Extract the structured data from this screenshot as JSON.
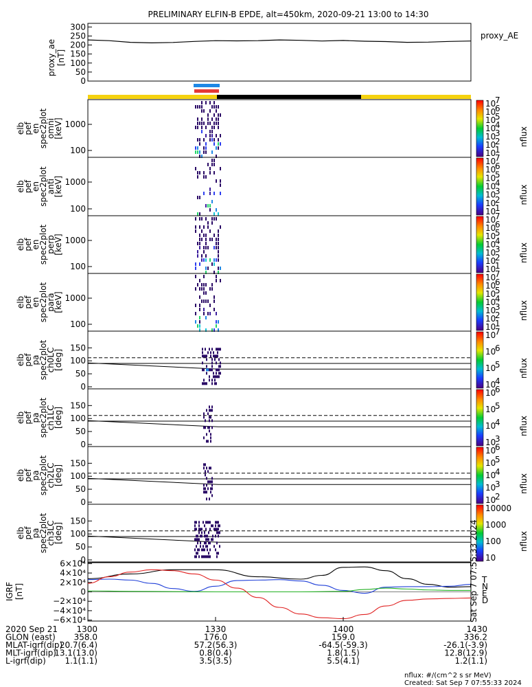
{
  "title": "PRELIMINARY ELFIN-B EPDE, alt=450km, 2020-09-21 13:00 to 14:30",
  "proxy_ae": {
    "ylabel": [
      "proxy_ae",
      "[nT]"
    ],
    "yticks": [
      "300",
      "250",
      "200",
      "150",
      "100",
      "50",
      "0"
    ],
    "legend": "proxy_AE"
  },
  "spectra_panels": [
    {
      "ylabel": [
        "elb",
        "pef",
        "en",
        "spec2plot",
        "omni",
        "[keV]"
      ],
      "yticks": [
        "1000",
        "100"
      ],
      "cbar_ticks": [
        "10",
        "10",
        "10",
        "10",
        "10",
        "10",
        "10"
      ],
      "cbar_exps": [
        "7",
        "6",
        "5",
        "4",
        "3",
        "2",
        "1"
      ],
      "cbar_unit": "nflux"
    },
    {
      "ylabel": [
        "elb",
        "pef",
        "en",
        "spec2plot",
        "anti",
        "[keV]"
      ],
      "yticks": [
        "1000",
        "100"
      ],
      "cbar_ticks": [
        "10",
        "10",
        "10",
        "10",
        "10",
        "10",
        "10"
      ],
      "cbar_exps": [
        "7",
        "6",
        "5",
        "4",
        "3",
        "2",
        "1"
      ],
      "cbar_unit": "nflux"
    },
    {
      "ylabel": [
        "elb",
        "pef",
        "en",
        "spec2plot",
        "perp",
        "[keV]"
      ],
      "yticks": [
        "1000",
        "100"
      ],
      "cbar_ticks": [
        "10",
        "10",
        "10",
        "10",
        "10",
        "10",
        "10"
      ],
      "cbar_exps": [
        "7",
        "6",
        "5",
        "4",
        "3",
        "2",
        "1"
      ],
      "cbar_unit": "nflux"
    },
    {
      "ylabel": [
        "elb",
        "pef",
        "en",
        "spec2plot",
        "para",
        "[keV]"
      ],
      "yticks": [
        "1000",
        "100"
      ],
      "cbar_ticks": [
        "10",
        "10",
        "10",
        "10",
        "10",
        "10",
        "10"
      ],
      "cbar_exps": [
        "7",
        "6",
        "5",
        "4",
        "3",
        "2",
        "1"
      ],
      "cbar_unit": "nflux"
    }
  ],
  "pa_panels": [
    {
      "ylabel": [
        "elb",
        "pef",
        "pa",
        "spec2plot",
        "ch0LC",
        "[deg]"
      ],
      "yticks": [
        "150",
        "100",
        "50",
        "0"
      ],
      "cbar_ticks": [
        "10",
        "10",
        "10",
        "10"
      ],
      "cbar_exps": [
        "7",
        "6",
        "5",
        "4"
      ],
      "cbar_unit": "nflux"
    },
    {
      "ylabel": [
        "elb",
        "pef",
        "pa",
        "spec2plot",
        "ch1LC",
        "[deg]"
      ],
      "yticks": [
        "150",
        "100",
        "50",
        "0"
      ],
      "cbar_ticks": [
        "10",
        "10",
        "10",
        "10"
      ],
      "cbar_exps": [
        "6",
        "5",
        "4",
        "3"
      ],
      "cbar_unit": "nflux"
    },
    {
      "ylabel": [
        "elb",
        "pef",
        "pa",
        "spec2plot",
        "ch2LC",
        "[deg]"
      ],
      "yticks": [
        "150",
        "100",
        "50",
        "0"
      ],
      "cbar_ticks": [
        "10",
        "10",
        "10",
        "10",
        "10"
      ],
      "cbar_exps": [
        "6",
        "5",
        "4",
        "3",
        "2"
      ],
      "cbar_unit": "nflux"
    },
    {
      "ylabel": [
        "elb",
        "pef",
        "pa",
        "spec2plot",
        "ch3LC",
        "[deg]"
      ],
      "yticks": [
        "150",
        "100",
        "50",
        "0"
      ],
      "cbar_ticks": [
        "10000",
        "1000",
        "100",
        "10"
      ],
      "cbar_exps": [
        "",
        "",
        "",
        ""
      ],
      "cbar_unit": "nflux"
    }
  ],
  "igrf": {
    "ylabel": [
      "IGRF",
      "[nT]"
    ],
    "yticks": [
      "6×10⁴",
      "4×10⁴",
      "2×10⁴",
      "0",
      "−2×10⁴",
      "−4×10⁴",
      "−6×10⁴"
    ],
    "legend": [
      {
        "label": "T",
        "color": "#000000"
      },
      {
        "label": "N",
        "color": "#1f3fd8"
      },
      {
        "label": "E",
        "color": "#22b022"
      },
      {
        "label": "D",
        "color": "#e02020"
      }
    ],
    "side_note": "Sat Sep  7 07:55:33 2024"
  },
  "time_axis": {
    "rows": [
      {
        "label": "2020 Sep 21",
        "values": [
          "1300",
          "1330",
          "1400",
          "1430"
        ]
      },
      {
        "label": "GLON (east)",
        "values": [
          "358.0",
          "176.0",
          "159.0",
          "336.2"
        ]
      },
      {
        "label": "MLAT-igrf(dip)",
        "values": [
          "20.7(6.4)",
          "57.2(56.3)",
          "-64.5(-59.3)",
          "-26.1(-3.9)"
        ]
      },
      {
        "label": "MLT-igrf(dip)",
        "values": [
          "13.1(13.0)",
          "0.8(0.4)",
          "1.8(1.5)",
          "12.8(12.9)"
        ]
      },
      {
        "label": "L-igrf(dip)",
        "values": [
          "1.1(1.1)",
          "3.5(3.5)",
          "5.5(4.1)",
          "1.2(1.1)"
        ]
      }
    ]
  },
  "footer": {
    "units": "nflux: #/(cm^2 s sr MeV)",
    "created": "Created: Sat Sep  7 07:55:33 2024"
  },
  "colors": {
    "sun_bar": "#f5d20f",
    "shadow_bar": "#000000",
    "blue_marker": "#1e88e5",
    "red_marker": "#e53935"
  },
  "chart_data": [
    {
      "type": "line",
      "name": "proxy_AE",
      "x": [
        1300,
        1305,
        1310,
        1315,
        1320,
        1325,
        1330,
        1335,
        1340,
        1345,
        1350,
        1355,
        1400,
        1405,
        1410,
        1415,
        1420,
        1425,
        1430
      ],
      "y": [
        228,
        224,
        215,
        212,
        214,
        220,
        224,
        223,
        224,
        228,
        226,
        222,
        225,
        221,
        219,
        215,
        216,
        220,
        222
      ],
      "ylim": [
        0,
        320
      ]
    },
    {
      "type": "line",
      "series": [
        {
          "name": "T",
          "x": [
            1300,
            1310,
            1320,
            1330,
            1340,
            1350,
            1355,
            1400,
            1405,
            1410,
            1415,
            1420,
            1425,
            1430
          ],
          "y": [
            28000,
            38000,
            47000,
            47000,
            32000,
            27000,
            35000,
            52000,
            53000,
            45000,
            28000,
            16000,
            10000,
            11000
          ]
        },
        {
          "name": "N",
          "x": [
            1300,
            1305,
            1310,
            1315,
            1320,
            1325,
            1330,
            1335,
            1340,
            1345,
            1350,
            1355,
            1400,
            1405,
            1410,
            1415,
            1420,
            1425,
            1430
          ],
          "y": [
            26000,
            27000,
            25000,
            18000,
            7000,
            1000,
            12000,
            24000,
            25000,
            26000,
            23000,
            14000,
            3000,
            -3000,
            10000,
            11000,
            11000,
            12000,
            16000
          ]
        },
        {
          "name": "E",
          "x": [
            1300,
            1310,
            1320,
            1330,
            1340,
            1350,
            1400,
            1405,
            1410,
            1415,
            1420,
            1425,
            1430
          ],
          "y": [
            2000,
            1000,
            500,
            0,
            0,
            0,
            1000,
            5000,
            8000,
            6000,
            4000,
            3000,
            3000
          ]
        },
        {
          "name": "D",
          "x": [
            1300,
            1305,
            1310,
            1315,
            1320,
            1325,
            1330,
            1335,
            1340,
            1345,
            1350,
            1355,
            1400,
            1405,
            1410,
            1415,
            1420,
            1425,
            1430
          ],
          "y": [
            18000,
            32000,
            42000,
            47000,
            45000,
            38000,
            25000,
            8000,
            -12000,
            -33000,
            -47000,
            -55000,
            -57000,
            -48000,
            -30000,
            -18000,
            -15000,
            -14000,
            -13000
          ]
        }
      ],
      "ylim": [
        -62000,
        62000
      ]
    }
  ]
}
